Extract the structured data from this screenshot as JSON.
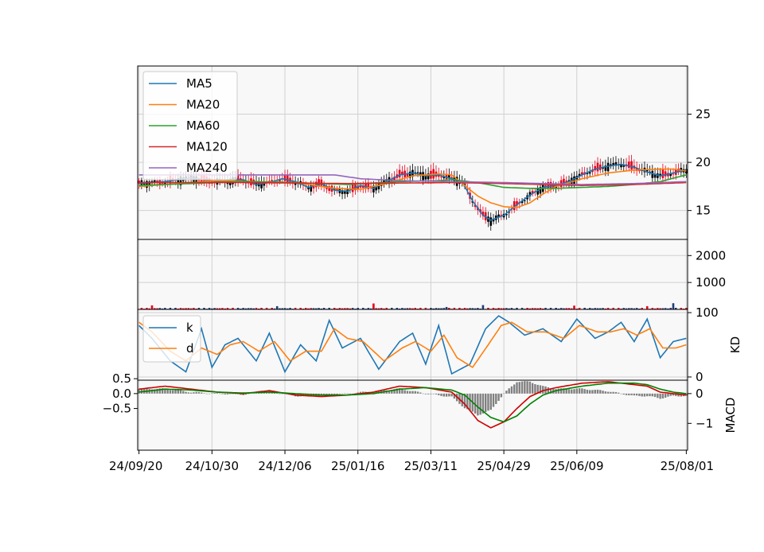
{
  "chart_data": {
    "type": "line",
    "x_tick_labels": [
      "24/09/20",
      "24/10/30",
      "24/12/06",
      "25/01/16",
      "25/03/11",
      "25/04/29",
      "25/06/09",
      "25/08/01"
    ],
    "x_tick_index": [
      0,
      28,
      56,
      84,
      112,
      140,
      168,
      210
    ],
    "n_bars": 211,
    "colors": {
      "MA5": "#1f77b4",
      "MA20": "#ff7f0e",
      "MA60": "#2ca02c",
      "MA120": "#d62728",
      "MA240": "#9467bd",
      "k": "#1f77b4",
      "d": "#ff7f0e",
      "dif": "#d00000",
      "macd": "#008000",
      "osc": "#808080",
      "up": "#e8001c",
      "down": "#000000",
      "background": "#f8f8f8",
      "grid": "#d0d0d0"
    },
    "price_panel": {
      "ylim": [
        12,
        30
      ],
      "yticks": [
        15,
        20,
        25
      ],
      "legend": [
        "MA5",
        "MA20",
        "MA60",
        "MA120",
        "MA240"
      ],
      "legend_loc": "upper-left",
      "MA5_keys": [
        [
          0,
          17.8
        ],
        [
          10,
          18.0
        ],
        [
          20,
          18.4
        ],
        [
          30,
          18.0
        ],
        [
          40,
          18.2
        ],
        [
          45,
          17.7
        ],
        [
          50,
          17.9
        ],
        [
          55,
          18.3
        ],
        [
          60,
          18.0
        ],
        [
          65,
          17.4
        ],
        [
          70,
          17.8
        ],
        [
          75,
          17.1
        ],
        [
          80,
          17.0
        ],
        [
          85,
          17.6
        ],
        [
          90,
          17.3
        ],
        [
          95,
          18.0
        ],
        [
          100,
          18.7
        ],
        [
          105,
          18.9
        ],
        [
          110,
          18.6
        ],
        [
          115,
          18.7
        ],
        [
          120,
          18.3
        ],
        [
          124,
          18.0
        ],
        [
          128,
          16.0
        ],
        [
          132,
          14.5
        ],
        [
          135,
          14.0
        ],
        [
          140,
          14.5
        ],
        [
          145,
          15.6
        ],
        [
          150,
          16.6
        ],
        [
          155,
          17.4
        ],
        [
          160,
          17.6
        ],
        [
          165,
          18.0
        ],
        [
          170,
          18.7
        ],
        [
          175,
          19.3
        ],
        [
          180,
          19.6
        ],
        [
          185,
          19.8
        ],
        [
          190,
          19.5
        ],
        [
          195,
          19.0
        ],
        [
          200,
          18.6
        ],
        [
          205,
          18.9
        ],
        [
          210,
          19.2
        ]
      ],
      "MA20_keys": [
        [
          0,
          17.5
        ],
        [
          15,
          17.8
        ],
        [
          30,
          18.1
        ],
        [
          45,
          18.0
        ],
        [
          60,
          17.9
        ],
        [
          75,
          17.3
        ],
        [
          85,
          17.2
        ],
        [
          95,
          17.8
        ],
        [
          105,
          18.6
        ],
        [
          115,
          18.8
        ],
        [
          120,
          18.7
        ],
        [
          125,
          17.6
        ],
        [
          130,
          16.5
        ],
        [
          135,
          15.8
        ],
        [
          140,
          15.4
        ],
        [
          145,
          15.3
        ],
        [
          150,
          15.8
        ],
        [
          155,
          16.7
        ],
        [
          160,
          17.5
        ],
        [
          170,
          18.3
        ],
        [
          180,
          18.9
        ],
        [
          190,
          19.2
        ],
        [
          200,
          19.3
        ],
        [
          205,
          19.3
        ],
        [
          210,
          19.1
        ]
      ],
      "MA60_keys": [
        [
          0,
          17.6
        ],
        [
          20,
          17.8
        ],
        [
          40,
          18.0
        ],
        [
          60,
          17.9
        ],
        [
          80,
          17.7
        ],
        [
          100,
          18.0
        ],
        [
          115,
          18.1
        ],
        [
          120,
          18.2
        ],
        [
          130,
          17.9
        ],
        [
          140,
          17.4
        ],
        [
          150,
          17.3
        ],
        [
          160,
          17.3
        ],
        [
          170,
          17.4
        ],
        [
          180,
          17.5
        ],
        [
          190,
          17.7
        ],
        [
          200,
          18.0
        ],
        [
          210,
          18.7
        ]
      ],
      "MA120_keys": [
        [
          0,
          17.9
        ],
        [
          40,
          17.9
        ],
        [
          80,
          17.8
        ],
        [
          120,
          17.9
        ],
        [
          140,
          17.8
        ],
        [
          170,
          17.6
        ],
        [
          190,
          17.7
        ],
        [
          210,
          17.9
        ]
      ],
      "MA240_keys": [
        [
          0,
          18.7
        ],
        [
          30,
          18.7
        ],
        [
          60,
          18.7
        ],
        [
          75,
          18.7
        ],
        [
          85,
          18.3
        ],
        [
          100,
          18.1
        ],
        [
          120,
          18.0
        ],
        [
          140,
          17.9
        ],
        [
          170,
          17.7
        ],
        [
          190,
          17.8
        ],
        [
          210,
          18.0
        ]
      ]
    },
    "volume_panel": {
      "ylim": [
        0,
        2600
      ],
      "yticks": [
        1000,
        2000
      ],
      "spikes": [
        [
          5,
          150
        ],
        [
          90,
          220
        ],
        [
          53,
          120
        ],
        [
          118,
          90
        ],
        [
          132,
          160
        ],
        [
          167,
          140
        ],
        [
          195,
          120
        ],
        [
          205,
          230
        ]
      ]
    },
    "kd_panel": {
      "ylim": [
        -5,
        105
      ],
      "yticks": [
        0,
        100
      ],
      "ylabel": "KD",
      "legend": [
        "k",
        "d"
      ],
      "legend_loc": "upper-left",
      "k_keys": [
        [
          0,
          80
        ],
        [
          5,
          60
        ],
        [
          12,
          25
        ],
        [
          18,
          8
        ],
        [
          24,
          75
        ],
        [
          28,
          15
        ],
        [
          33,
          50
        ],
        [
          38,
          60
        ],
        [
          45,
          25
        ],
        [
          50,
          68
        ],
        [
          56,
          8
        ],
        [
          62,
          50
        ],
        [
          68,
          25
        ],
        [
          73,
          88
        ],
        [
          78,
          45
        ],
        [
          85,
          60
        ],
        [
          92,
          12
        ],
        [
          100,
          55
        ],
        [
          105,
          68
        ],
        [
          110,
          20
        ],
        [
          115,
          80
        ],
        [
          120,
          5
        ],
        [
          127,
          20
        ],
        [
          133,
          75
        ],
        [
          138,
          95
        ],
        [
          142,
          85
        ],
        [
          148,
          65
        ],
        [
          155,
          75
        ],
        [
          162,
          55
        ],
        [
          168,
          90
        ],
        [
          175,
          60
        ],
        [
          180,
          70
        ],
        [
          185,
          85
        ],
        [
          190,
          55
        ],
        [
          195,
          90
        ],
        [
          200,
          30
        ],
        [
          205,
          55
        ],
        [
          210,
          60
        ]
      ],
      "d_keys": [
        [
          0,
          85
        ],
        [
          5,
          70
        ],
        [
          12,
          40
        ],
        [
          18,
          25
        ],
        [
          24,
          45
        ],
        [
          30,
          35
        ],
        [
          35,
          50
        ],
        [
          40,
          55
        ],
        [
          46,
          40
        ],
        [
          52,
          55
        ],
        [
          58,
          25
        ],
        [
          64,
          40
        ],
        [
          70,
          40
        ],
        [
          75,
          75
        ],
        [
          80,
          60
        ],
        [
          86,
          55
        ],
        [
          94,
          25
        ],
        [
          101,
          45
        ],
        [
          106,
          55
        ],
        [
          112,
          40
        ],
        [
          117,
          65
        ],
        [
          122,
          30
        ],
        [
          128,
          15
        ],
        [
          134,
          50
        ],
        [
          139,
          80
        ],
        [
          143,
          85
        ],
        [
          149,
          70
        ],
        [
          156,
          70
        ],
        [
          163,
          60
        ],
        [
          169,
          80
        ],
        [
          176,
          70
        ],
        [
          181,
          70
        ],
        [
          186,
          75
        ],
        [
          191,
          65
        ],
        [
          196,
          75
        ],
        [
          201,
          45
        ],
        [
          206,
          45
        ],
        [
          210,
          50
        ]
      ]
    },
    "macd_panel": {
      "ylim": [
        -1.9,
        0.45
      ],
      "yticks_right": [
        0,
        -1
      ],
      "yticks_left": [
        0.5,
        0.0,
        -0.5
      ],
      "ylabel": "MACD",
      "dif_keys": [
        [
          0,
          0.15
        ],
        [
          10,
          0.25
        ],
        [
          20,
          0.15
        ],
        [
          30,
          0.05
        ],
        [
          40,
          0.0
        ],
        [
          50,
          0.1
        ],
        [
          60,
          -0.05
        ],
        [
          70,
          -0.1
        ],
        [
          80,
          -0.05
        ],
        [
          90,
          0.05
        ],
        [
          100,
          0.25
        ],
        [
          110,
          0.2
        ],
        [
          120,
          0.05
        ],
        [
          125,
          -0.35
        ],
        [
          130,
          -0.9
        ],
        [
          135,
          -1.15
        ],
        [
          140,
          -0.95
        ],
        [
          145,
          -0.5
        ],
        [
          150,
          -0.1
        ],
        [
          155,
          0.1
        ],
        [
          160,
          0.2
        ],
        [
          170,
          0.35
        ],
        [
          180,
          0.4
        ],
        [
          190,
          0.3
        ],
        [
          195,
          0.25
        ],
        [
          200,
          0.05
        ],
        [
          205,
          0.0
        ],
        [
          210,
          -0.05
        ]
      ],
      "macd_keys": [
        [
          0,
          0.05
        ],
        [
          10,
          0.15
        ],
        [
          20,
          0.12
        ],
        [
          30,
          0.05
        ],
        [
          40,
          0.02
        ],
        [
          50,
          0.05
        ],
        [
          60,
          0.0
        ],
        [
          70,
          -0.05
        ],
        [
          80,
          -0.05
        ],
        [
          90,
          0.0
        ],
        [
          100,
          0.15
        ],
        [
          110,
          0.2
        ],
        [
          120,
          0.12
        ],
        [
          125,
          -0.05
        ],
        [
          130,
          -0.45
        ],
        [
          135,
          -0.8
        ],
        [
          140,
          -0.95
        ],
        [
          145,
          -0.75
        ],
        [
          150,
          -0.35
        ],
        [
          155,
          -0.05
        ],
        [
          160,
          0.1
        ],
        [
          170,
          0.25
        ],
        [
          180,
          0.35
        ],
        [
          190,
          0.35
        ],
        [
          195,
          0.3
        ],
        [
          200,
          0.15
        ],
        [
          205,
          0.05
        ],
        [
          210,
          0.0
        ]
      ]
    }
  }
}
